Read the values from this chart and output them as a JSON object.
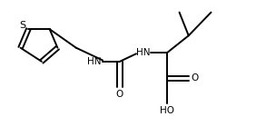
{
  "bg_color": "#ffffff",
  "line_color": "#000000",
  "lw": 1.4,
  "fs": 7.5,
  "figsize": [
    2.93,
    1.5
  ],
  "dpi": 100,
  "xlim": [
    0,
    10.0
  ],
  "ylim": [
    0,
    5.2
  ]
}
